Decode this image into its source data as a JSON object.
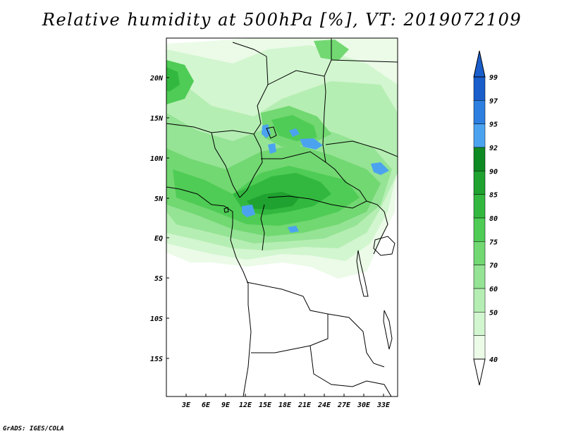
{
  "title": "Relative humidity at 500hPa [%], VT: 2019072109",
  "credit": "GrADS: IGES/COLA",
  "map": {
    "lat_range": [
      -19,
      25
    ],
    "lon_range": [
      0.5,
      35.5
    ],
    "lat_labels": [
      "20N",
      "15N",
      "10N",
      "5N",
      "EQ",
      "5S",
      "10S",
      "15S"
    ],
    "lon_labels": [
      "3E",
      "6E",
      "9E",
      "12E",
      "15E",
      "18E",
      "21E",
      "24E",
      "27E",
      "30E",
      "33E"
    ]
  },
  "legend": {
    "levels": [
      "99",
      "97",
      "95",
      "92",
      "90",
      "85",
      "80",
      "75",
      "70",
      "60",
      "50",
      "40"
    ],
    "colors": [
      "#1a5ecc",
      "#2c7fe0",
      "#4ba3f0",
      "#0e8a22",
      "#1fa22f",
      "#33b83f",
      "#4fcc55",
      "#72d872",
      "#95e395",
      "#b5eeb3",
      "#d2f6cf",
      "#ebfbe8"
    ]
  }
}
